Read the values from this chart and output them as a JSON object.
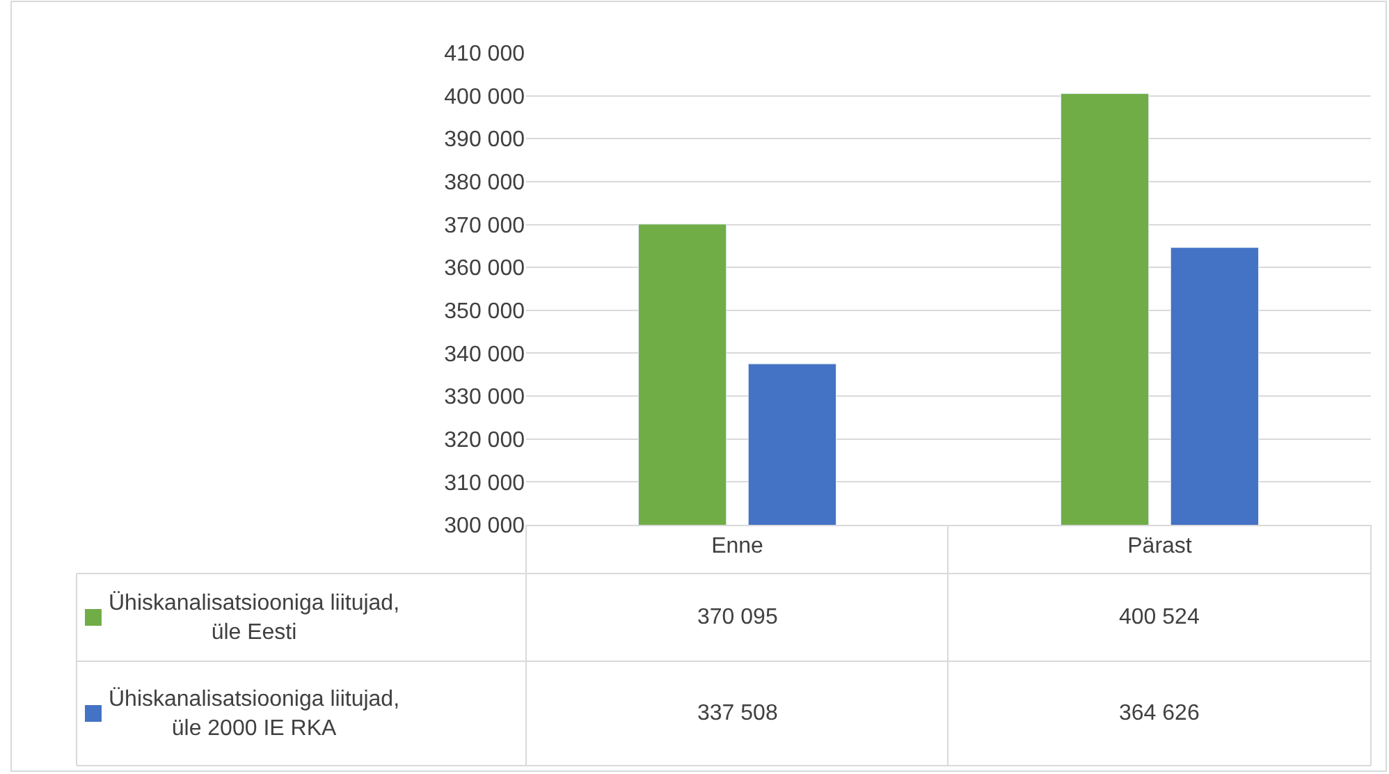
{
  "chart_data": {
    "type": "bar",
    "categories": [
      "Enne",
      "Pärast"
    ],
    "series": [
      {
        "name": "Ühiskanalisatsiooniga liitujad,\nüle Eesti",
        "color": "#70ad47",
        "values": [
          370095,
          400524
        ]
      },
      {
        "name": "Ühiskanalisatsiooniga liitujad,\nüle 2000 IE RKA",
        "color": "#4472c4",
        "values": [
          337508,
          364626
        ]
      }
    ],
    "ylim": [
      300000,
      410000
    ],
    "yticks": [
      {
        "value": 300000,
        "label": "300 000"
      },
      {
        "value": 310000,
        "label": "310 000"
      },
      {
        "value": 320000,
        "label": "320 000"
      },
      {
        "value": 330000,
        "label": "330 000"
      },
      {
        "value": 340000,
        "label": "340 000"
      },
      {
        "value": 350000,
        "label": "350 000"
      },
      {
        "value": 360000,
        "label": "360 000"
      },
      {
        "value": 370000,
        "label": "370 000"
      },
      {
        "value": 380000,
        "label": "380 000"
      },
      {
        "value": 390000,
        "label": "390 000"
      },
      {
        "value": 400000,
        "label": "400 000"
      },
      {
        "value": 410000,
        "label": "410 000"
      }
    ],
    "grid": "y",
    "data_labels": true,
    "legend": "bottom left"
  }
}
